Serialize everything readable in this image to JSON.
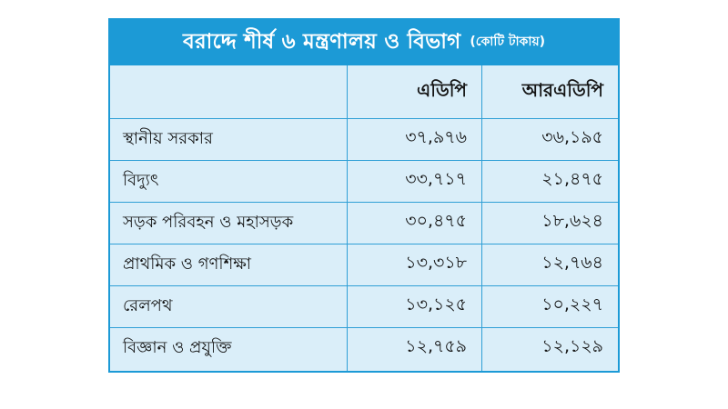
{
  "chart_data": {
    "type": "table",
    "title": "বরাদ্দে শীর্ষ ৬ মন্ত্রণালয় ও বিভাগ",
    "unit": "(কোটি টাকায়)",
    "columns": [
      "",
      "এডিপি",
      "আরএডিপি"
    ],
    "rows": [
      {
        "name": "স্থানীয় সরকার",
        "adp": "৩৭,৯৭৬",
        "radp": "৩৬,১৯৫"
      },
      {
        "name": "বিদ্যুৎ",
        "adp": "৩৩,৭১৭",
        "radp": "২১,৪৭৫"
      },
      {
        "name": "সড়ক পরিবহন ও মহাসড়ক",
        "adp": "৩০,৪৭৫",
        "radp": "১৮,৬২৪"
      },
      {
        "name": "প্রাথমিক ও গণশিক্ষা",
        "adp": "১৩,৩১৮",
        "radp": "১২,৭৬৪"
      },
      {
        "name": "রেলপথ",
        "adp": "১৩,১২৫",
        "radp": "১০,২২৭"
      },
      {
        "name": "বিজ্ঞান ও প্রযুক্তি",
        "adp": "১২,৭৫৯",
        "radp": "১২,১২৯"
      }
    ]
  },
  "colors": {
    "header": "#1c9ad6",
    "body": "#daeef9",
    "grid": "#2f9fd6"
  }
}
